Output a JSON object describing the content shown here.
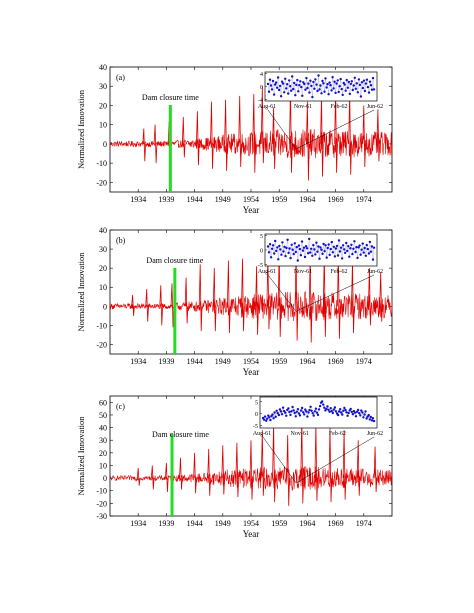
{
  "chart_data": [
    {
      "type": "line",
      "panel_label": "(a)",
      "xlabel": "Year",
      "ylabel": "Normalized Innovation",
      "x_ticks": [
        "1934",
        "1939",
        "1944",
        "1949",
        "1954",
        "1959",
        "1964",
        "1969",
        "1974"
      ],
      "xlim": [
        1929,
        1979
      ],
      "y_ticks": [
        40,
        30,
        20,
        10,
        0,
        -10,
        -20
      ],
      "ylim": [
        -25,
        40
      ],
      "annotation": "Dam closure time",
      "dam_closure_year": 1939.7,
      "series": [
        {
          "color": "#e00000",
          "profile": [
            [
              1929,
              1.5
            ],
            [
              1939,
              1.5
            ],
            [
              1945,
              3
            ],
            [
              1952,
              6
            ],
            [
              1962,
              8
            ],
            [
              1972,
              7
            ],
            [
              1979,
              6
            ]
          ],
          "spikes": [
            [
              1935,
              8,
              -9
            ],
            [
              1937,
              10,
              -10
            ],
            [
              1939.5,
              12,
              -12
            ],
            [
              1942,
              14,
              -7
            ],
            [
              1944.5,
              17,
              -11
            ],
            [
              1947,
              22,
              -13
            ],
            [
              1949.5,
              23,
              -14
            ],
            [
              1952,
              25,
              -12
            ],
            [
              1954.5,
              26,
              -15
            ],
            [
              1956,
              30,
              -10
            ],
            [
              1958,
              19,
              -13
            ],
            [
              1961,
              30,
              -15
            ],
            [
              1964,
              22,
              -19
            ],
            [
              1966.5,
              25,
              -17
            ],
            [
              1969,
              28,
              -15
            ],
            [
              1971.5,
              27,
              -16
            ],
            [
              1974,
              20,
              -12
            ],
            [
              1976.5,
              18,
              -9
            ]
          ]
        }
      ],
      "inset": {
        "y_ticks": [
          4,
          0,
          -4
        ],
        "ylim": [
          -4.5,
          4.5
        ],
        "x_ticks": [
          "Aug-61",
          "Nov-61",
          "Feb-62",
          "Jun-62"
        ],
        "point_color": "#1010cc",
        "points": [
          0.8,
          -1.6,
          2.1,
          0.3,
          -0.9,
          1.7,
          -2.5,
          0.6,
          1.2,
          -0.4,
          2.8,
          -1.1,
          0.2,
          -3.0,
          1.5,
          0.9,
          -1.8,
          2.4,
          -0.6,
          0.7,
          -2.2,
          1.9,
          0.1,
          -1.3,
          3.1,
          -0.8,
          1.1,
          -2.7,
          0.5,
          2.0,
          -1.5,
          0.4,
          1.6,
          -0.2,
          -2.9,
          1.3,
          0.8,
          -1.0,
          2.6,
          -0.5,
          0.9,
          -1.9,
          1.8,
          0.2,
          -3.3,
          1.4,
          -0.7,
          2.2,
          0.6,
          -1.4,
          3.4,
          -0.9,
          0.3,
          -2.1,
          1.7,
          1.0,
          -1.6,
          2.5,
          -0.3,
          0.7,
          -2.4,
          1.2,
          0.4,
          -1.2,
          2.9,
          -0.6,
          1.5,
          -2.0,
          0.9,
          1.9,
          -1.7,
          0.1,
          2.3,
          -0.8,
          -2.6,
          1.1,
          0.6,
          -1.3,
          2.0,
          -0.4,
          1.4,
          -2.3,
          0.8,
          1.6,
          -1.1,
          0.3,
          2.7,
          -0.7,
          1.0,
          -1.8,
          2.2,
          0.5,
          -3.1,
          1.3,
          -0.5,
          1.8,
          -1.4,
          0.9,
          2.1,
          -0.2,
          -1.9,
          1.5,
          0.4,
          -1.0,
          2.6,
          -0.9
        ]
      }
    },
    {
      "type": "line",
      "panel_label": "(b)",
      "xlabel": "Year",
      "ylabel": "Normalized Innovation",
      "x_ticks": [
        "1934",
        "1939",
        "1944",
        "1949",
        "1954",
        "1959",
        "1964",
        "1969",
        "1974"
      ],
      "xlim": [
        1929,
        1979
      ],
      "y_ticks": [
        40,
        30,
        20,
        10,
        0,
        -10,
        -20
      ],
      "ylim": [
        -25,
        40
      ],
      "annotation": "Dam closure time",
      "dam_closure_year": 1940.5,
      "series": [
        {
          "color": "#e00000",
          "profile": [
            [
              1929,
              1.5
            ],
            [
              1939,
              1.5
            ],
            [
              1945,
              3
            ],
            [
              1952,
              6
            ],
            [
              1962,
              8
            ],
            [
              1972,
              7
            ],
            [
              1979,
              6
            ]
          ],
          "spikes": [
            [
              1933,
              6,
              -5
            ],
            [
              1935.5,
              9,
              -8
            ],
            [
              1938,
              11,
              -10
            ],
            [
              1940,
              12,
              -11
            ],
            [
              1942.5,
              15,
              -9
            ],
            [
              1945,
              22,
              -13
            ],
            [
              1947.5,
              20,
              -13
            ],
            [
              1950,
              24,
              -14
            ],
            [
              1952.5,
              25,
              -13
            ],
            [
              1955,
              21,
              -15
            ],
            [
              1957,
              27,
              -12
            ],
            [
              1959,
              30,
              -16
            ],
            [
              1962,
              29,
              -18
            ],
            [
              1964.5,
              26,
              -19
            ],
            [
              1967,
              28,
              -16
            ],
            [
              1969.5,
              27,
              -17
            ],
            [
              1972,
              24,
              -14
            ],
            [
              1975,
              20,
              -10
            ],
            [
              1977,
              18,
              -8
            ]
          ]
        }
      ],
      "inset": {
        "y_ticks": [
          5,
          0,
          -5
        ],
        "ylim": [
          -5.5,
          5.5
        ],
        "x_ticks": [
          "Aug-61",
          "Nov-61",
          "Feb-62",
          "Jun-62"
        ],
        "point_color": "#1010cc",
        "points": [
          1.2,
          -0.8,
          2.0,
          -2.5,
          0.4,
          1.6,
          -1.2,
          3.1,
          -0.3,
          0.9,
          -3.2,
          1.4,
          0.2,
          -1.6,
          2.6,
          -0.5,
          1.1,
          -2.1,
          0.7,
          3.5,
          -1.0,
          0.5,
          -2.8,
          1.8,
          0.1,
          -1.4,
          2.3,
          -0.7,
          1.0,
          -3.6,
          1.5,
          0.3,
          -1.8,
          2.9,
          -0.2,
          0.8,
          -2.4,
          1.3,
          0.6,
          -1.1,
          3.8,
          -0.9,
          0.4,
          -2.0,
          1.7,
          0.2,
          -1.5,
          2.5,
          -0.6,
          1.2,
          -3.0,
          0.9,
          0.1,
          -1.3,
          2.1,
          -0.4,
          1.6,
          -2.6,
          0.7,
          1.9,
          -1.7,
          0.3,
          2.7,
          -0.8,
          1.1,
          -2.2,
          0.5,
          1.4,
          -1.9,
          3.3,
          -0.5,
          0.8,
          -2.9,
          1.6,
          0.2,
          -1.0,
          2.4,
          -0.3,
          1.3,
          -2.3,
          0.6,
          1.8,
          -1.4,
          0.4,
          3.0,
          -0.7,
          1.0,
          -2.7,
          0.9,
          1.5,
          -1.6,
          0.1,
          2.2,
          -0.9,
          0.7,
          -2.0,
          1.7,
          0.3,
          -1.2,
          2.8,
          -0.6,
          1.2,
          -3.3,
          0.8
        ]
      }
    },
    {
      "type": "line",
      "panel_label": "(c)",
      "xlabel": "Year",
      "ylabel": "Normalized Innovation",
      "x_ticks": [
        "1934",
        "1939",
        "1944",
        "1949",
        "1954",
        "1959",
        "1964",
        "1969",
        "1974"
      ],
      "xlim": [
        1929,
        1979
      ],
      "y_ticks": [
        60,
        50,
        40,
        30,
        20,
        10,
        0,
        -10,
        -20,
        -30
      ],
      "ylim": [
        -30,
        65
      ],
      "annotation": "Dam closure time",
      "dam_closure_year": 1940,
      "series": [
        {
          "color": "#e00000",
          "profile": [
            [
              1929,
              2
            ],
            [
              1939,
              2
            ],
            [
              1945,
              4
            ],
            [
              1952,
              8
            ],
            [
              1962,
              10
            ],
            [
              1972,
              8
            ],
            [
              1979,
              7
            ]
          ],
          "spikes": [
            [
              1934,
              8,
              -6
            ],
            [
              1936.5,
              10,
              -9
            ],
            [
              1939,
              12,
              -11
            ],
            [
              1941.5,
              16,
              -9
            ],
            [
              1944,
              20,
              -12
            ],
            [
              1946.5,
              23,
              -14
            ],
            [
              1949,
              26,
              -13
            ],
            [
              1951.5,
              28,
              -15
            ],
            [
              1954,
              30,
              -17
            ],
            [
              1956,
              38,
              -14
            ],
            [
              1958,
              44,
              -19
            ],
            [
              1960.5,
              34,
              -22
            ],
            [
              1963,
              48,
              -20
            ],
            [
              1965.5,
              42,
              -18
            ],
            [
              1968,
              40,
              -19
            ],
            [
              1970.5,
              38,
              -17
            ],
            [
              1973,
              30,
              -14
            ],
            [
              1976,
              25,
              -11
            ]
          ]
        }
      ],
      "inset": {
        "y_ticks": [
          5,
          0,
          -5
        ],
        "ylim": [
          -6,
          7
        ],
        "x_ticks": [
          "Aug-61",
          "Nov-61",
          "Feb-62",
          "Jun-62"
        ],
        "point_color": "#1010cc",
        "points": [
          -1.8,
          -2.5,
          -1.2,
          -3.0,
          -2.1,
          -0.8,
          -1.5,
          -2.7,
          -1.0,
          -0.4,
          -1.9,
          0.5,
          -1.3,
          1.2,
          0.2,
          -0.6,
          1.8,
          0.9,
          -0.2,
          2.5,
          1.1,
          0.4,
          -0.9,
          1.6,
          2.2,
          0.7,
          -0.5,
          1.0,
          2.8,
          1.4,
          0.3,
          -1.1,
          0.8,
          1.9,
          0.1,
          -0.7,
          1.3,
          2.4,
          0.6,
          -0.3,
          1.7,
          0.9,
          -1.2,
          0.5,
          1.5,
          2.9,
          1.2,
          0.2,
          -0.8,
          1.0,
          2.1,
          0.4,
          -0.5,
          1.8,
          3.2,
          4.6,
          5.1,
          3.8,
          2.5,
          1.4,
          2.0,
          3.0,
          1.6,
          0.8,
          2.3,
          1.1,
          0.3,
          1.7,
          2.6,
          1.0,
          0.1,
          -0.6,
          0.9,
          1.9,
          0.5,
          -0.4,
          1.2,
          2.4,
          1.5,
          0.6,
          -0.9,
          0.3,
          1.4,
          2.0,
          0.7,
          -0.2,
          1.1,
          0.4,
          -1.1,
          0.8,
          1.6,
          0.2,
          -0.7,
          1.3,
          0.5,
          -1.5,
          -0.4,
          0.9,
          -2.0,
          -1.2,
          -0.6,
          -2.4,
          -1.4,
          -2.8,
          -1.9,
          -3.1
        ]
      }
    }
  ]
}
